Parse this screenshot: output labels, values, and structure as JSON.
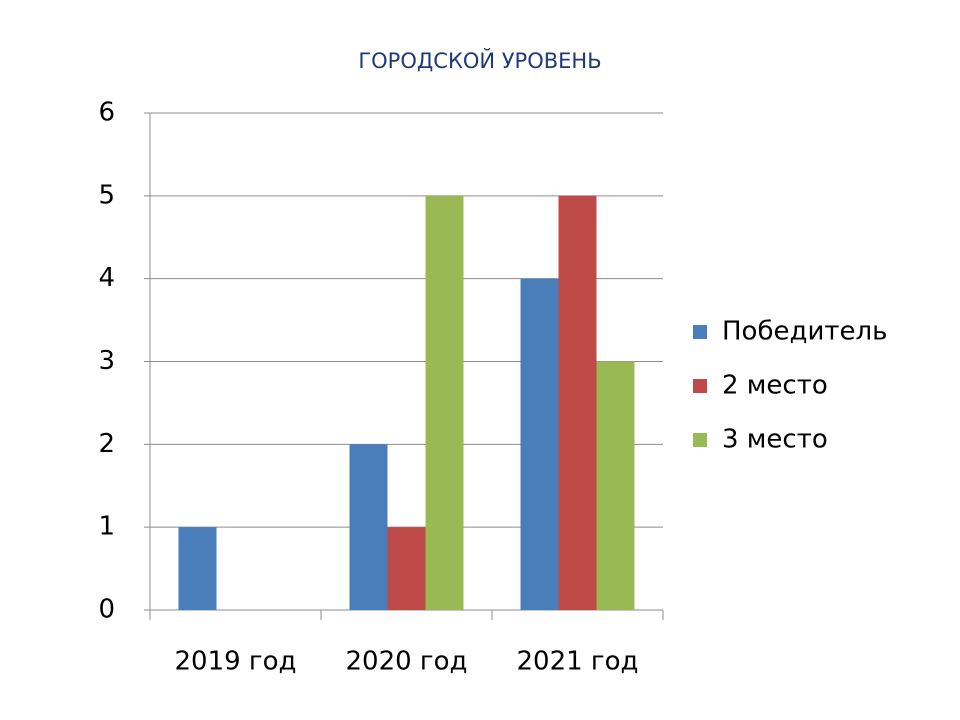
{
  "chart_data": {
    "type": "bar",
    "title": "ГОРОДСКОЙ УРОВЕНЬ",
    "categories": [
      "2019 год",
      "2020 год",
      "2021 год"
    ],
    "series": [
      {
        "name": "Победитель",
        "color": "#4a7ebb",
        "values": [
          1,
          2,
          4
        ]
      },
      {
        "name": "2 место",
        "color": "#be4b48",
        "values": [
          0,
          1,
          5
        ]
      },
      {
        "name": "3 место",
        "color": "#98b954",
        "values": [
          0,
          5,
          3
        ]
      }
    ],
    "ylim": [
      0,
      6
    ],
    "yticks": [
      0,
      1,
      2,
      3,
      4,
      5,
      6
    ],
    "grid": true,
    "legend": "right"
  }
}
